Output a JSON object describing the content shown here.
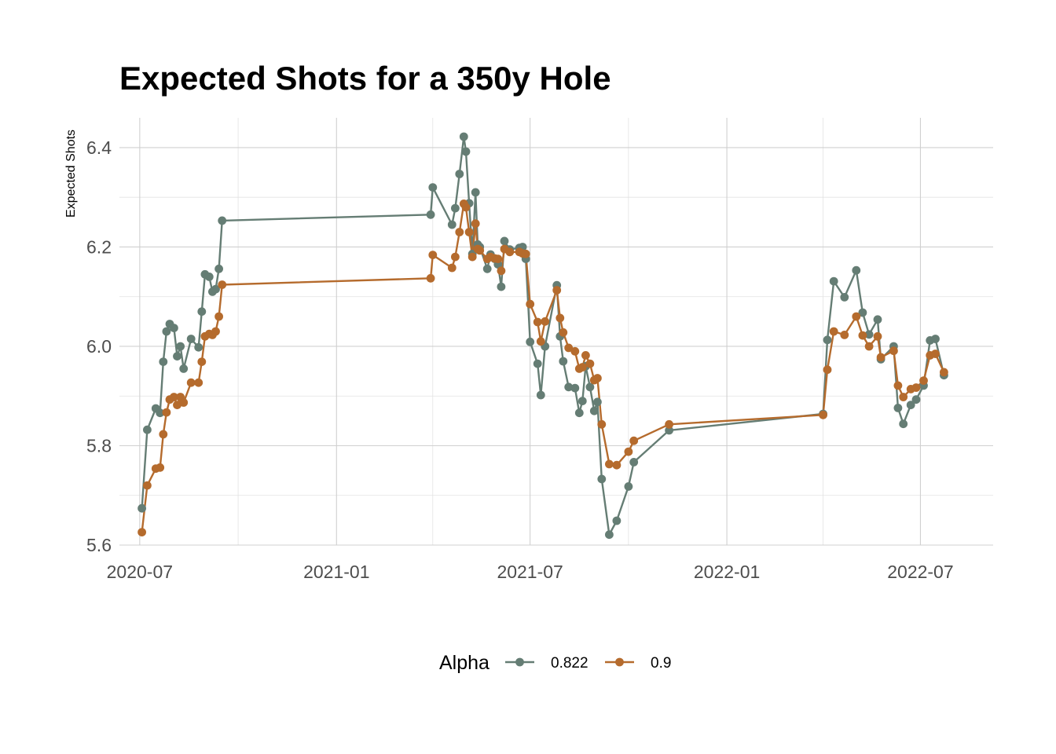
{
  "chart_data": {
    "type": "line",
    "title": "Expected Shots for a 350y Hole",
    "xlabel": "",
    "ylabel": "Expected Shots",
    "x_ticks": [
      "2020-07",
      "2021-01",
      "2021-07",
      "2022-01",
      "2022-07"
    ],
    "y_ticks": [
      "5.6",
      "5.8",
      "6.0",
      "6.2",
      "6.4"
    ],
    "xlim": [
      "2020-06-12",
      "2022-09-07"
    ],
    "ylim": [
      5.6,
      6.46
    ],
    "grid": true,
    "legend_position": "bottom",
    "legend_title": "Alpha",
    "colors": {
      "0.822": "#657d74",
      "0.9": "#b56b2d"
    },
    "series": [
      {
        "name": "0.822",
        "color": "#657d74",
        "points": [
          [
            "2020-07-03",
            5.674
          ],
          [
            "2020-07-08",
            5.832
          ],
          [
            "2020-07-16",
            5.875
          ],
          [
            "2020-07-20",
            5.866
          ],
          [
            "2020-07-23",
            5.969
          ],
          [
            "2020-07-26",
            6.03
          ],
          [
            "2020-07-29",
            6.045
          ],
          [
            "2020-08-02",
            6.037
          ],
          [
            "2020-08-05",
            5.98
          ],
          [
            "2020-08-08",
            6.0
          ],
          [
            "2020-08-11",
            5.955
          ],
          [
            "2020-08-18",
            6.015
          ],
          [
            "2020-08-25",
            5.998
          ],
          [
            "2020-08-28",
            6.07
          ],
          [
            "2020-08-31",
            6.145
          ],
          [
            "2020-09-04",
            6.14
          ],
          [
            "2020-09-07",
            6.11
          ],
          [
            "2020-09-10",
            6.115
          ],
          [
            "2020-09-13",
            6.156
          ],
          [
            "2020-09-16",
            6.253
          ],
          [
            "2021-03-30",
            6.265
          ],
          [
            "2021-04-01",
            6.32
          ],
          [
            "2021-04-19",
            6.245
          ],
          [
            "2021-04-22",
            6.278
          ],
          [
            "2021-04-26",
            6.347
          ],
          [
            "2021-04-30",
            6.422
          ],
          [
            "2021-05-02",
            6.392
          ],
          [
            "2021-05-05",
            6.288
          ],
          [
            "2021-05-08",
            6.186
          ],
          [
            "2021-05-11",
            6.31
          ],
          [
            "2021-05-13",
            6.205
          ],
          [
            "2021-05-15",
            6.2
          ],
          [
            "2021-05-22",
            6.156
          ],
          [
            "2021-05-25",
            6.185
          ],
          [
            "2021-05-29",
            6.176
          ],
          [
            "2021-06-01",
            6.165
          ],
          [
            "2021-06-04",
            6.12
          ],
          [
            "2021-06-07",
            6.212
          ],
          [
            "2021-06-12",
            6.195
          ],
          [
            "2021-06-21",
            6.198
          ],
          [
            "2021-06-24",
            6.2
          ],
          [
            "2021-06-27",
            6.176
          ],
          [
            "2021-07-01",
            6.009
          ],
          [
            "2021-07-08",
            5.965
          ],
          [
            "2021-07-11",
            5.902
          ],
          [
            "2021-07-15",
            6.0
          ],
          [
            "2021-07-26",
            6.123
          ],
          [
            "2021-07-29",
            6.02
          ],
          [
            "2021-08-01",
            5.97
          ],
          [
            "2021-08-06",
            5.918
          ],
          [
            "2021-08-12",
            5.916
          ],
          [
            "2021-08-16",
            5.866
          ],
          [
            "2021-08-19",
            5.89
          ],
          [
            "2021-08-22",
            5.96
          ],
          [
            "2021-08-26",
            5.918
          ],
          [
            "2021-08-30",
            5.87
          ],
          [
            "2021-09-02",
            5.888
          ],
          [
            "2021-09-06",
            5.733
          ],
          [
            "2021-09-13",
            5.621
          ],
          [
            "2021-09-20",
            5.649
          ],
          [
            "2021-10-01",
            5.718
          ],
          [
            "2021-10-06",
            5.767
          ],
          [
            "2021-11-08",
            5.831
          ],
          [
            "2022-04-01",
            5.864
          ],
          [
            "2022-04-05",
            6.013
          ],
          [
            "2022-04-11",
            6.131
          ],
          [
            "2022-04-21",
            6.099
          ],
          [
            "2022-05-02",
            6.153
          ],
          [
            "2022-05-08",
            6.068
          ],
          [
            "2022-05-14",
            6.024
          ],
          [
            "2022-05-22",
            6.054
          ],
          [
            "2022-05-25",
            5.974
          ],
          [
            "2022-06-06",
            6.0
          ],
          [
            "2022-06-10",
            5.876
          ],
          [
            "2022-06-15",
            5.844
          ],
          [
            "2022-06-22",
            5.882
          ],
          [
            "2022-06-27",
            5.893
          ],
          [
            "2022-07-04",
            5.921
          ],
          [
            "2022-07-10",
            6.012
          ],
          [
            "2022-07-15",
            6.015
          ],
          [
            "2022-07-23",
            5.942
          ]
        ]
      },
      {
        "name": "0.9",
        "color": "#b56b2d",
        "points": [
          [
            "2020-07-03",
            5.626
          ],
          [
            "2020-07-08",
            5.72
          ],
          [
            "2020-07-16",
            5.754
          ],
          [
            "2020-07-20",
            5.756
          ],
          [
            "2020-07-23",
            5.823
          ],
          [
            "2020-07-26",
            5.867
          ],
          [
            "2020-07-29",
            5.893
          ],
          [
            "2020-08-02",
            5.898
          ],
          [
            "2020-08-05",
            5.882
          ],
          [
            "2020-08-08",
            5.898
          ],
          [
            "2020-08-11",
            5.887
          ],
          [
            "2020-08-18",
            5.927
          ],
          [
            "2020-08-25",
            5.927
          ],
          [
            "2020-08-28",
            5.969
          ],
          [
            "2020-08-31",
            6.02
          ],
          [
            "2020-09-04",
            6.025
          ],
          [
            "2020-09-07",
            6.023
          ],
          [
            "2020-09-10",
            6.03
          ],
          [
            "2020-09-13",
            6.06
          ],
          [
            "2020-09-16",
            6.124
          ],
          [
            "2021-03-30",
            6.137
          ],
          [
            "2021-04-01",
            6.184
          ],
          [
            "2021-04-19",
            6.158
          ],
          [
            "2021-04-22",
            6.18
          ],
          [
            "2021-04-26",
            6.23
          ],
          [
            "2021-04-30",
            6.287
          ],
          [
            "2021-05-02",
            6.28
          ],
          [
            "2021-05-05",
            6.23
          ],
          [
            "2021-05-08",
            6.18
          ],
          [
            "2021-05-11",
            6.247
          ],
          [
            "2021-05-13",
            6.196
          ],
          [
            "2021-05-15",
            6.193
          ],
          [
            "2021-05-22",
            6.176
          ],
          [
            "2021-05-25",
            6.18
          ],
          [
            "2021-05-29",
            6.177
          ],
          [
            "2021-06-01",
            6.176
          ],
          [
            "2021-06-04",
            6.152
          ],
          [
            "2021-06-07",
            6.196
          ],
          [
            "2021-06-12",
            6.19
          ],
          [
            "2021-06-21",
            6.19
          ],
          [
            "2021-06-24",
            6.187
          ],
          [
            "2021-06-27",
            6.186
          ],
          [
            "2021-07-01",
            6.085
          ],
          [
            "2021-07-08",
            6.049
          ],
          [
            "2021-07-11",
            6.01
          ],
          [
            "2021-07-15",
            6.05
          ],
          [
            "2021-07-26",
            6.113
          ],
          [
            "2021-07-29",
            6.057
          ],
          [
            "2021-08-01",
            6.028
          ],
          [
            "2021-08-06",
            5.997
          ],
          [
            "2021-08-12",
            5.99
          ],
          [
            "2021-08-16",
            5.955
          ],
          [
            "2021-08-19",
            5.958
          ],
          [
            "2021-08-22",
            5.982
          ],
          [
            "2021-08-26",
            5.965
          ],
          [
            "2021-08-30",
            5.932
          ],
          [
            "2021-09-02",
            5.936
          ],
          [
            "2021-09-06",
            5.843
          ],
          [
            "2021-09-13",
            5.763
          ],
          [
            "2021-09-20",
            5.761
          ],
          [
            "2021-10-01",
            5.788
          ],
          [
            "2021-10-06",
            5.81
          ],
          [
            "2021-11-08",
            5.843
          ],
          [
            "2022-04-01",
            5.862
          ],
          [
            "2022-04-05",
            5.953
          ],
          [
            "2022-04-11",
            6.03
          ],
          [
            "2022-04-21",
            6.023
          ],
          [
            "2022-05-02",
            6.06
          ],
          [
            "2022-05-08",
            6.022
          ],
          [
            "2022-05-14",
            6.0
          ],
          [
            "2022-05-22",
            6.02
          ],
          [
            "2022-05-25",
            5.978
          ],
          [
            "2022-06-06",
            5.991
          ],
          [
            "2022-06-10",
            5.921
          ],
          [
            "2022-06-15",
            5.898
          ],
          [
            "2022-06-22",
            5.914
          ],
          [
            "2022-06-27",
            5.917
          ],
          [
            "2022-07-04",
            5.931
          ],
          [
            "2022-07-10",
            5.982
          ],
          [
            "2022-07-15",
            5.985
          ],
          [
            "2022-07-23",
            5.948
          ]
        ]
      }
    ]
  }
}
